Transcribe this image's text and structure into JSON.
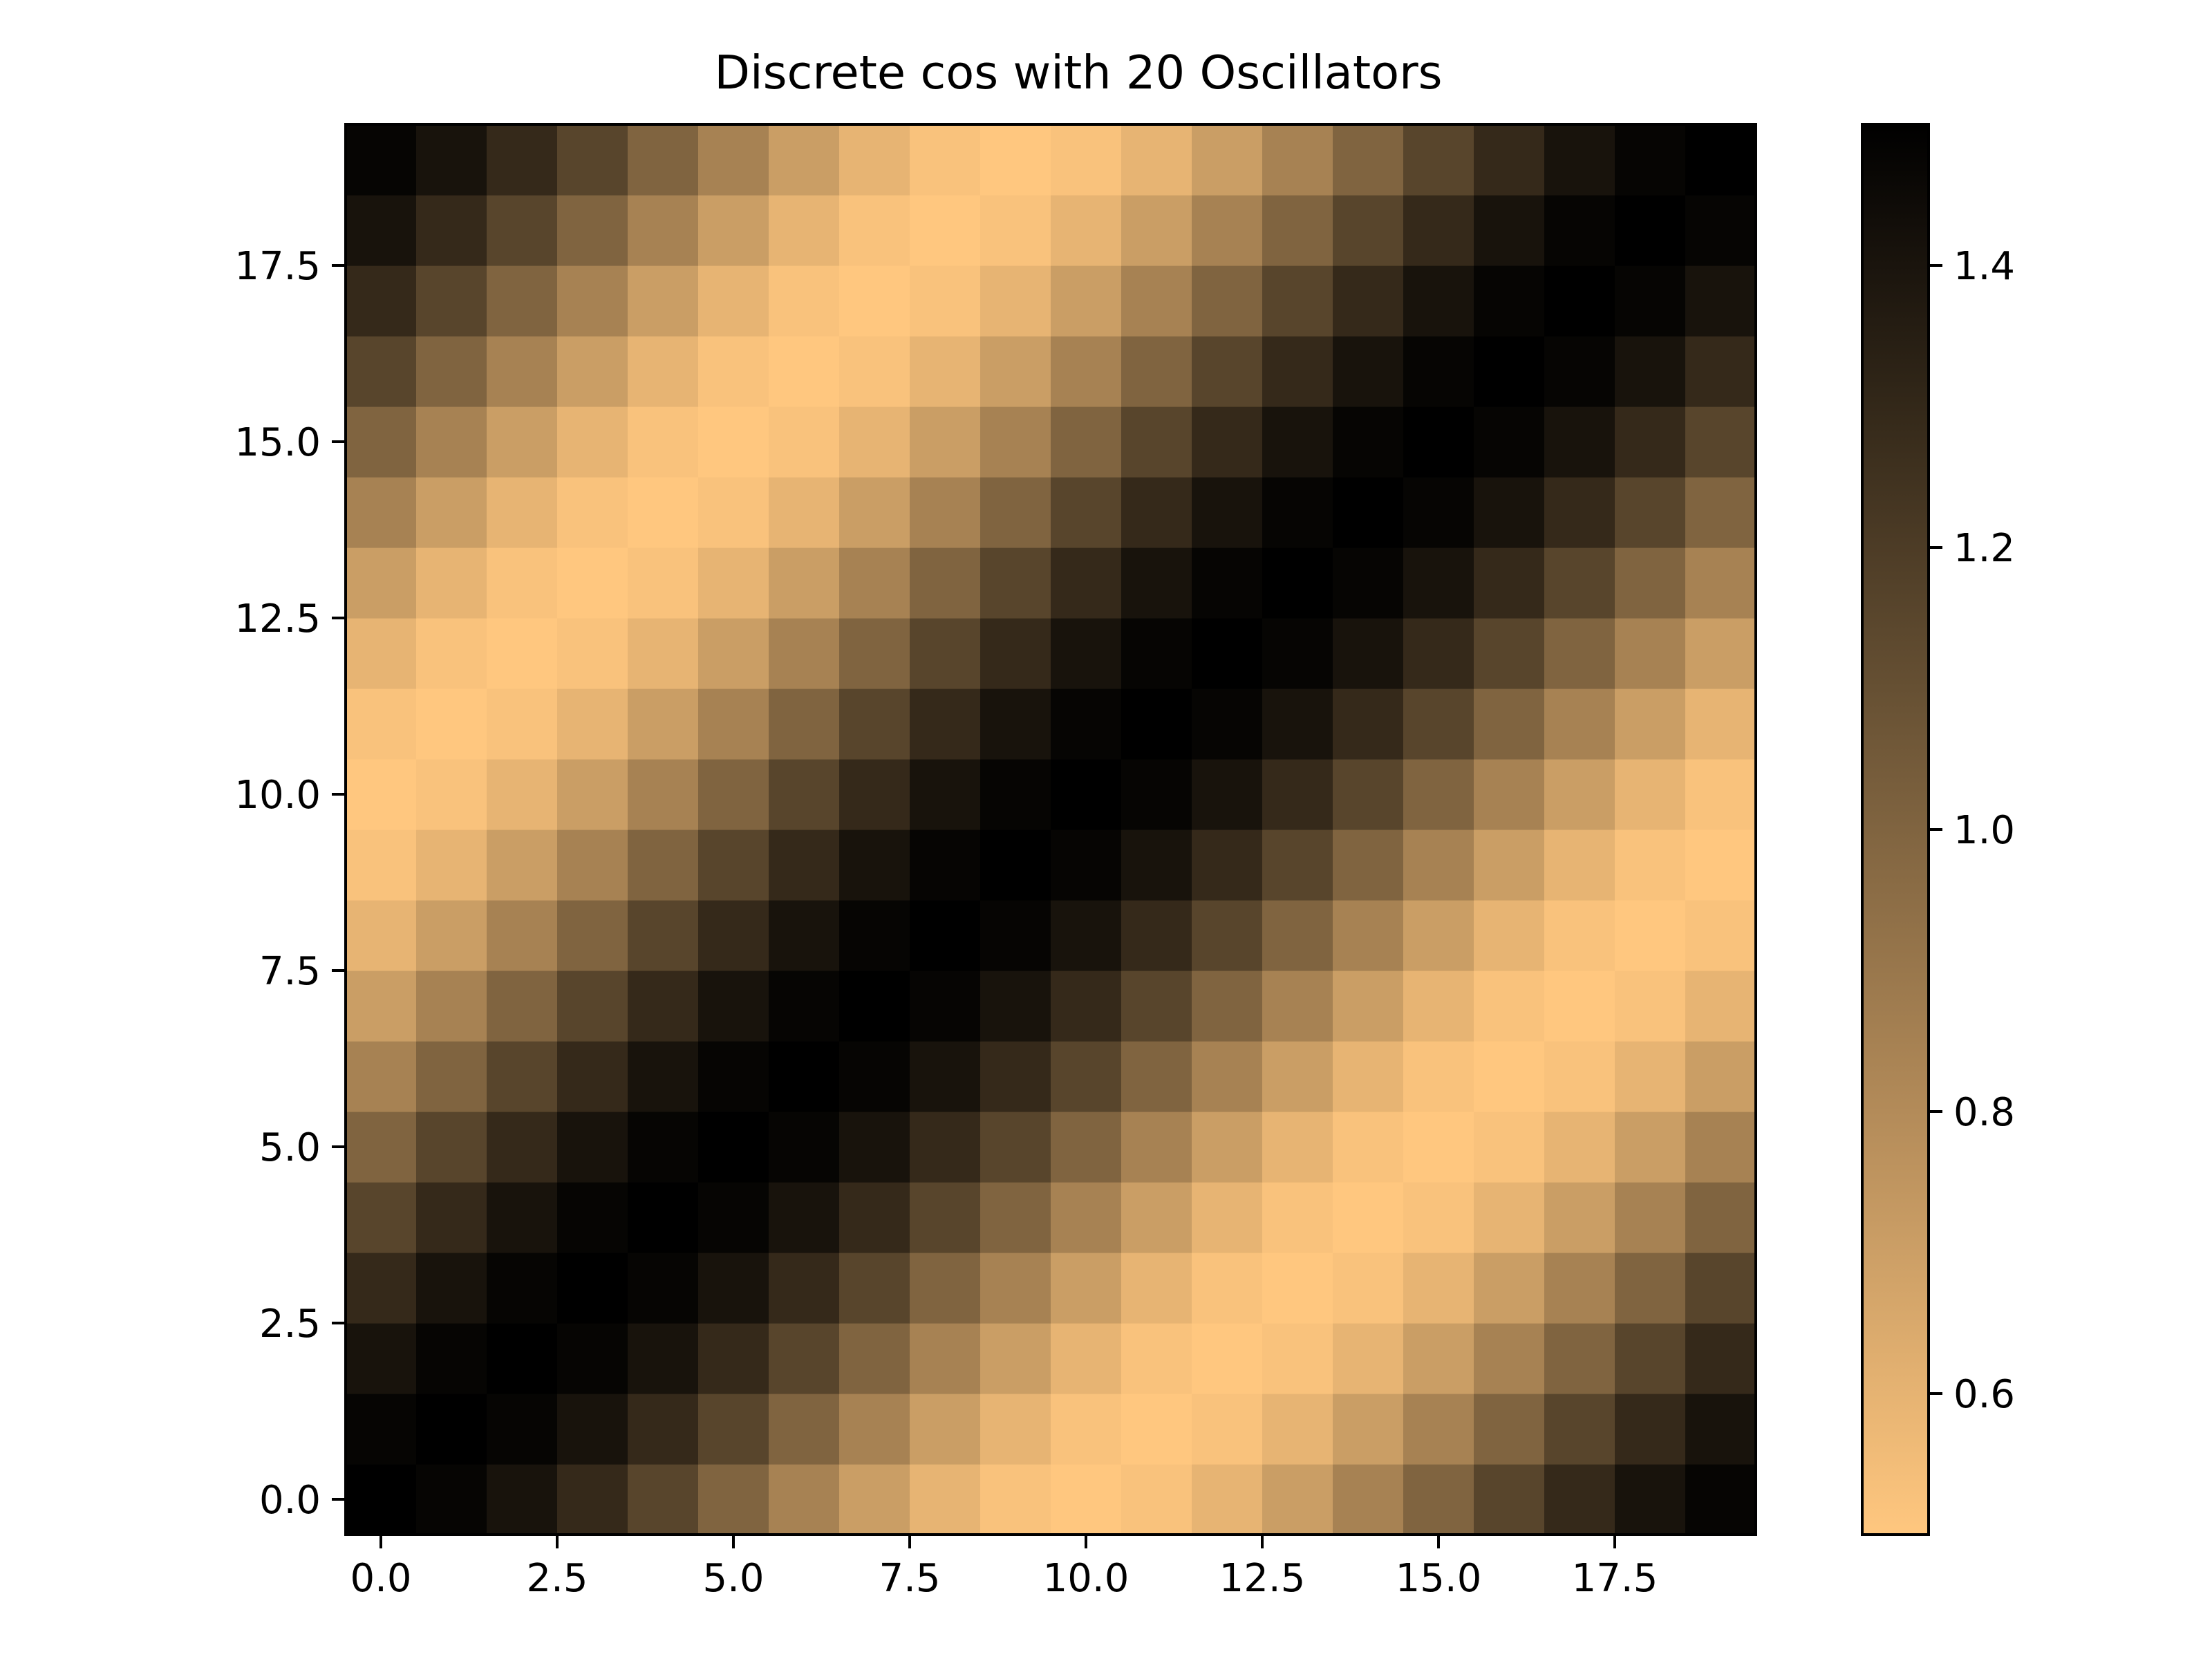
{
  "chart_data": {
    "type": "heatmap",
    "title": "Discrete cos with 20 Oscillators",
    "xlabel": "",
    "ylabel": "",
    "n": 20,
    "xlim": [
      -0.5,
      19.5
    ],
    "ylim": [
      -0.5,
      19.5
    ],
    "origin": "lower",
    "x_ticks": [
      0.0,
      2.5,
      5.0,
      7.5,
      10.0,
      12.5,
      15.0,
      17.5
    ],
    "x_tick_labels": [
      "0.0",
      "2.5",
      "5.0",
      "7.5",
      "10.0",
      "12.5",
      "15.0",
      "17.5"
    ],
    "y_ticks": [
      0.0,
      2.5,
      5.0,
      7.5,
      10.0,
      12.5,
      15.0,
      17.5
    ],
    "y_tick_labels": [
      "0.0",
      "2.5",
      "5.0",
      "7.5",
      "10.0",
      "12.5",
      "15.0",
      "17.5"
    ],
    "colormap": "copper_r",
    "colormap_light": "#ffc77f",
    "colormap_dark": "#000000",
    "colorbar": {
      "range": [
        0.5,
        1.5
      ],
      "ticks": [
        0.6,
        0.8,
        1.0,
        1.2,
        1.4
      ],
      "tick_labels": [
        "0.6",
        "0.8",
        "1.0",
        "1.2",
        "1.4"
      ]
    },
    "grid": false,
    "values_note": "z[i][j] for row i (y) and column j (x), rows listed from y=0 upward",
    "values": [
      [
        1.5,
        1.475,
        1.405,
        1.294,
        1.155,
        1.0,
        0.845,
        0.706,
        0.595,
        0.525,
        0.5,
        0.525,
        0.595,
        0.706,
        0.845,
        1.0,
        1.155,
        1.294,
        1.405,
        1.475
      ],
      [
        1.475,
        1.5,
        1.475,
        1.405,
        1.294,
        1.155,
        1.0,
        0.845,
        0.706,
        0.595,
        0.525,
        0.5,
        0.525,
        0.595,
        0.706,
        0.845,
        1.0,
        1.155,
        1.294,
        1.405
      ],
      [
        1.405,
        1.475,
        1.5,
        1.475,
        1.405,
        1.294,
        1.155,
        1.0,
        0.845,
        0.706,
        0.595,
        0.525,
        0.5,
        0.525,
        0.595,
        0.706,
        0.845,
        1.0,
        1.155,
        1.294
      ],
      [
        1.294,
        1.405,
        1.475,
        1.5,
        1.475,
        1.405,
        1.294,
        1.155,
        1.0,
        0.845,
        0.706,
        0.595,
        0.525,
        0.5,
        0.525,
        0.595,
        0.706,
        0.845,
        1.0,
        1.155
      ],
      [
        1.155,
        1.294,
        1.405,
        1.475,
        1.5,
        1.475,
        1.405,
        1.294,
        1.155,
        1.0,
        0.845,
        0.706,
        0.595,
        0.525,
        0.5,
        0.525,
        0.595,
        0.706,
        0.845,
        1.0
      ],
      [
        1.0,
        1.155,
        1.294,
        1.405,
        1.475,
        1.5,
        1.475,
        1.405,
        1.294,
        1.155,
        1.0,
        0.845,
        0.706,
        0.595,
        0.525,
        0.5,
        0.525,
        0.595,
        0.706,
        0.845
      ],
      [
        0.845,
        1.0,
        1.155,
        1.294,
        1.405,
        1.475,
        1.5,
        1.475,
        1.405,
        1.294,
        1.155,
        1.0,
        0.845,
        0.706,
        0.595,
        0.525,
        0.5,
        0.525,
        0.595,
        0.706
      ],
      [
        0.706,
        0.845,
        1.0,
        1.155,
        1.294,
        1.405,
        1.475,
        1.5,
        1.475,
        1.405,
        1.294,
        1.155,
        1.0,
        0.845,
        0.706,
        0.595,
        0.525,
        0.5,
        0.525,
        0.595
      ],
      [
        0.595,
        0.706,
        0.845,
        1.0,
        1.155,
        1.294,
        1.405,
        1.475,
        1.5,
        1.475,
        1.405,
        1.294,
        1.155,
        1.0,
        0.845,
        0.706,
        0.595,
        0.525,
        0.5,
        0.525
      ],
      [
        0.525,
        0.595,
        0.706,
        0.845,
        1.0,
        1.155,
        1.294,
        1.405,
        1.475,
        1.5,
        1.475,
        1.405,
        1.294,
        1.155,
        1.0,
        0.845,
        0.706,
        0.595,
        0.525,
        0.5
      ],
      [
        0.5,
        0.525,
        0.595,
        0.706,
        0.845,
        1.0,
        1.155,
        1.294,
        1.405,
        1.475,
        1.5,
        1.475,
        1.405,
        1.294,
        1.155,
        1.0,
        0.845,
        0.706,
        0.595,
        0.525
      ],
      [
        0.525,
        0.5,
        0.525,
        0.595,
        0.706,
        0.845,
        1.0,
        1.155,
        1.294,
        1.405,
        1.475,
        1.5,
        1.475,
        1.405,
        1.294,
        1.155,
        1.0,
        0.845,
        0.706,
        0.595
      ],
      [
        0.595,
        0.525,
        0.5,
        0.525,
        0.595,
        0.706,
        0.845,
        1.0,
        1.155,
        1.294,
        1.405,
        1.475,
        1.5,
        1.475,
        1.405,
        1.294,
        1.155,
        1.0,
        0.845,
        0.706
      ],
      [
        0.706,
        0.595,
        0.525,
        0.5,
        0.525,
        0.595,
        0.706,
        0.845,
        1.0,
        1.155,
        1.294,
        1.405,
        1.475,
        1.5,
        1.475,
        1.405,
        1.294,
        1.155,
        1.0,
        0.845
      ],
      [
        0.845,
        0.706,
        0.595,
        0.525,
        0.5,
        0.525,
        0.595,
        0.706,
        0.845,
        1.0,
        1.155,
        1.294,
        1.405,
        1.475,
        1.5,
        1.475,
        1.405,
        1.294,
        1.155,
        1.0
      ],
      [
        1.0,
        0.845,
        0.706,
        0.595,
        0.525,
        0.5,
        0.525,
        0.595,
        0.706,
        0.845,
        1.0,
        1.155,
        1.294,
        1.405,
        1.475,
        1.5,
        1.475,
        1.405,
        1.294,
        1.155
      ],
      [
        1.155,
        1.0,
        0.845,
        0.706,
        0.595,
        0.525,
        0.5,
        0.525,
        0.595,
        0.706,
        0.845,
        1.0,
        1.155,
        1.294,
        1.405,
        1.475,
        1.5,
        1.475,
        1.405,
        1.294
      ],
      [
        1.294,
        1.155,
        1.0,
        0.845,
        0.706,
        0.595,
        0.525,
        0.5,
        0.525,
        0.595,
        0.706,
        0.845,
        1.0,
        1.155,
        1.294,
        1.405,
        1.475,
        1.5,
        1.475,
        1.405
      ],
      [
        1.405,
        1.294,
        1.155,
        1.0,
        0.845,
        0.706,
        0.595,
        0.525,
        0.5,
        0.525,
        0.595,
        0.706,
        0.845,
        1.0,
        1.155,
        1.294,
        1.405,
        1.475,
        1.5,
        1.475
      ],
      [
        1.475,
        1.405,
        1.294,
        1.155,
        1.0,
        0.845,
        0.706,
        0.595,
        0.525,
        0.5,
        0.525,
        0.595,
        0.706,
        0.845,
        1.0,
        1.155,
        1.294,
        1.405,
        1.475,
        1.5
      ]
    ]
  }
}
